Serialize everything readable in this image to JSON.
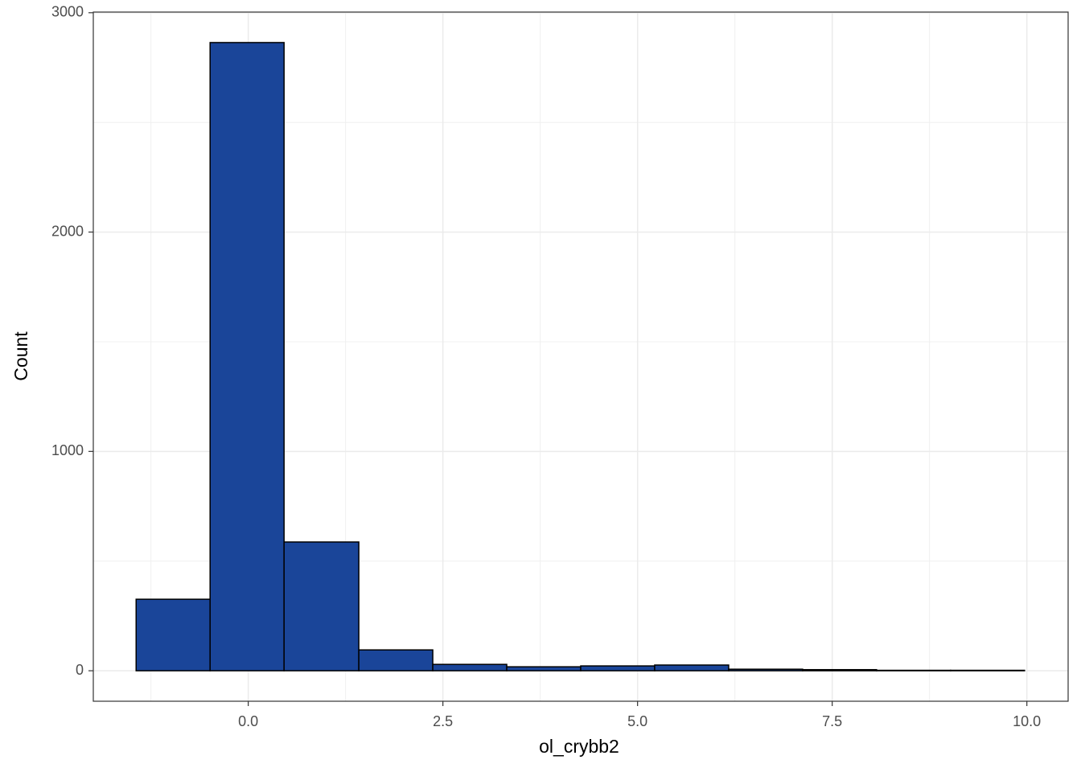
{
  "chart_data": {
    "type": "histogram",
    "x_label": "ol_crybb2",
    "y_label": "Count",
    "bins": [
      -1.44,
      -0.49,
      0.46,
      1.42,
      2.37,
      3.32,
      4.27,
      5.22,
      6.17,
      7.12,
      8.07,
      9.02,
      9.97
    ],
    "counts": [
      326,
      2864,
      587,
      95,
      29,
      18,
      22,
      26,
      7,
      5,
      2,
      2
    ],
    "color": "#1a4599",
    "edge_color": "#000000",
    "xlim": [
      -1.99,
      10.53
    ],
    "ylim": [
      -139,
      3003
    ],
    "xticks": [
      {
        "value": 0,
        "label": "0.0"
      },
      2.5,
      {
        "value": 5,
        "label": "5.0"
      },
      7.5,
      {
        "value": 10,
        "label": "10.0"
      }
    ],
    "yticks": [
      0,
      1000,
      2000,
      3000
    ],
    "grid": true,
    "minor_grid": true
  }
}
